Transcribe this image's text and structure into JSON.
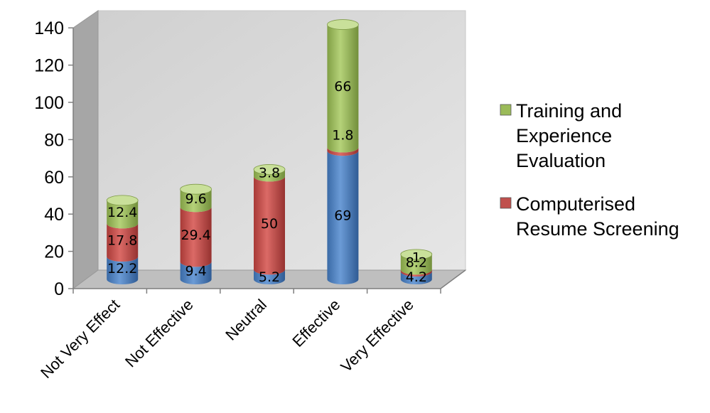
{
  "chart_data": {
    "type": "bar",
    "stacked": true,
    "style": "3d-cylinder",
    "categories": [
      "Not Very Effect",
      "Not Effective",
      "Neutral",
      "Effective",
      "Very Effective"
    ],
    "series": [
      {
        "name": "",
        "values": [
          12.2,
          9.4,
          5.2,
          69,
          4.2
        ],
        "color": "#4f81bd"
      },
      {
        "name": "Computerised Resume Screening",
        "values": [
          17.8,
          29.4,
          50,
          1.8,
          1
        ],
        "color": "#c0504d"
      },
      {
        "name": "Training and Experience Evaluation",
        "values": [
          12.4,
          9.6,
          3.8,
          66,
          8.2
        ],
        "color": "#9bbb59"
      }
    ],
    "data_labels": [
      [
        "12.2",
        "9.4",
        "5.2",
        "69",
        "4.2"
      ],
      [
        "17.8",
        "29.4",
        "50",
        "1.8",
        "1"
      ],
      [
        "12.4",
        "9.6",
        "3.8",
        "66",
        "8.2"
      ]
    ],
    "ylim": [
      0,
      140
    ],
    "yticks": [
      0,
      20,
      40,
      60,
      80,
      100,
      120,
      140
    ],
    "grid": false,
    "legend_position": "right",
    "legend": [
      {
        "lines": [
          "Training and",
          "Experience",
          "Evaluation"
        ],
        "color": "#9bbb59"
      },
      {
        "lines": [
          "Computerised",
          "Resume Screening"
        ],
        "color": "#c0504d"
      }
    ],
    "wall_color": "#d9d9d9",
    "floor_color": "#bfbfbf",
    "side_wall_color": "#a6a6a6"
  }
}
